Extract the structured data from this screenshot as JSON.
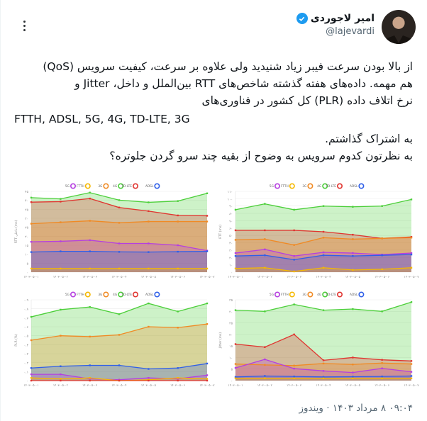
{
  "author": {
    "display_name": "امیر لاجوردی",
    "handle": "@lajevardi",
    "verified": true,
    "avatar_icon": "profile-photo"
  },
  "menu": {
    "icon": "more-vertical-icon"
  },
  "tweet": {
    "line1": "از بالا بودن سرعت فیبر زیاد شنیدید ولی علاوه بر سرعت، کیفیت سرویس (QoS)",
    "line2": "هم مهمه. داده‌های هفته گذشته شاخص‌های RTT بین‌الملل و داخل، Jitter و",
    "line3": "نرخ اتلاف داده (PLR) کل کشور در فناوری‌های",
    "line4": "FTTH, ADSL, 5G, 4G, TD-LTE, 3G",
    "line5": "به اشتراک گذاشتم.",
    "line6": "به نظرتون کدوم سرویس به وضوح از بقیه چند سرو گردن جلوتره؟"
  },
  "footer": {
    "time": "۰۹:۰۴",
    "date": "۸ مرداد ۱۴۰۳",
    "separator": "·",
    "source": "ویندوز",
    "full": "۰۹:۰۴ ۸ مرداد ۱۴۰۳ · ویندوز"
  },
  "colors": {
    "5G": "#b53fe0",
    "FTTH": "#f5b800",
    "3G": "#f08a24",
    "4G": "#4ccf3a",
    "TD-LTE": "#e0342f",
    "ADSL": "#2f5fe8"
  },
  "chart_data": [
    {
      "type": "area",
      "position": "top-left",
      "title": "",
      "ylabel": "RTT داخلی (ms)",
      "xlabel": "",
      "categories": [
        "۱۴۰۳-۰۵-۰۱",
        "۱۴۰۳-۰۵-۰۲",
        "۱۴۰۳-۰۵-۰۳",
        "۱۴۰۳-۰۵-۰۴",
        "۱۴۰۳-۰۵-۰۵",
        "۱۴۰۳-۰۵-۰۶",
        "۱۴۰۳-۰۵-۰۷"
      ],
      "yticks": [
        "۰",
        "۵",
        "۱۰",
        "۱۵",
        "۲۰",
        "۲۵",
        "۳۰",
        "۳۵",
        "۴۰",
        "۴۵"
      ],
      "ylim": [
        0,
        45
      ],
      "grid": true,
      "legend_position": "top",
      "legend": [
        "5G",
        "FTTH",
        "3G",
        "4G",
        "TD-LTE",
        "ADSL"
      ],
      "series": [
        {
          "name": "4G",
          "values": [
            41.5,
            40.8,
            44.3,
            40.1,
            38.9,
            39.6,
            43.9
          ]
        },
        {
          "name": "TD-LTE",
          "values": [
            39.0,
            39.3,
            41.0,
            36.0,
            34.0,
            31.6,
            31.4
          ]
        },
        {
          "name": "3G",
          "values": [
            27.0,
            27.8,
            28.6,
            27.5,
            28.2,
            28.2,
            28.2
          ]
        },
        {
          "name": "5G",
          "values": [
            16.9,
            17.2,
            17.8,
            16.0,
            16.0,
            15.0,
            12.0
          ]
        },
        {
          "name": "ADSL",
          "values": [
            11.2,
            11.6,
            11.6,
            11.3,
            11.2,
            11.4,
            11.6
          ]
        },
        {
          "name": "FTTH",
          "values": [
            2.0,
            2.0,
            2.0,
            2.0,
            2.0,
            2.0,
            2.0
          ]
        }
      ]
    },
    {
      "type": "area",
      "position": "top-right",
      "title": "",
      "ylabel": "RTT (ms)",
      "xlabel": "",
      "categories": [
        "۱۴۰۳-۰۵-۰۱",
        "۱۴۰۳-۰۵-۰۲",
        "۱۴۰۳-۰۵-۰۳",
        "۱۴۰۳-۰۵-۰۴",
        "۱۴۰۳-۰۵-۰۵",
        "۱۴۰۳-۰۵-۰۶",
        "۱۴۰۳-۰۵-۰۷"
      ],
      "yticks": [
        "۰",
        "۱۰",
        "۲۰",
        "۳۰",
        "۴۰",
        "۵۰",
        "۶۰",
        "۷۰",
        "۸۰",
        "۹۰",
        "۱۰۰",
        "۱۱۰"
      ],
      "ylim": [
        0,
        110
      ],
      "grid": true,
      "legend_position": "top",
      "legend": [
        "5G",
        "FTTH",
        "3G",
        "4G",
        "TD-LTE",
        "ADSL"
      ],
      "series": [
        {
          "name": "4G",
          "values": [
            85,
            93,
            85,
            90,
            89,
            90,
            99
          ]
        },
        {
          "name": "TD-LTE",
          "values": [
            57,
            57,
            57,
            55,
            51,
            46,
            48
          ]
        },
        {
          "name": "3G",
          "values": [
            44,
            45,
            37,
            47,
            45,
            46,
            47
          ]
        },
        {
          "name": "5G",
          "values": [
            26,
            31,
            22,
            27,
            26,
            24,
            26
          ]
        },
        {
          "name": "ADSL",
          "values": [
            22,
            23,
            17,
            23,
            22,
            23,
            24
          ]
        },
        {
          "name": "FTTH",
          "values": [
            5,
            6,
            1,
            6,
            3,
            4,
            6
          ]
        }
      ]
    },
    {
      "type": "area",
      "position": "bottom-left",
      "title": "",
      "ylabel": "PLR (%)",
      "xlabel": "",
      "categories": [
        "۱۴۰۳-۰۵-۰۱",
        "۱۴۰۳-۰۵-۰۲",
        "۱۴۰۳-۰۵-۰۳",
        "۱۴۰۳-۰۵-۰۴",
        "۱۴۰۳-۰۵-۰۵",
        "۱۴۰۳-۰۵-۰۶",
        "۱۴۰۳-۰۵-۰۷"
      ],
      "yticks": [
        "۰",
        "۰.۱",
        "۰.۲",
        "۰.۳",
        "۰.۴",
        "۰.۵",
        "۰.۶",
        "۰.۷",
        "۰.۸",
        "۰.۹"
      ],
      "ylim": [
        0,
        0.9
      ],
      "grid": true,
      "legend_position": "top",
      "legend": [
        "5G",
        "FTTH",
        "3G",
        "4G",
        "TD-LTE",
        "ADSL"
      ],
      "series": [
        {
          "name": "4G",
          "values": [
            0.71,
            0.79,
            0.82,
            0.74,
            0.86,
            0.77,
            0.86
          ]
        },
        {
          "name": "3G",
          "values": [
            0.45,
            0.5,
            0.49,
            0.51,
            0.6,
            0.59,
            0.63
          ]
        },
        {
          "name": "ADSL",
          "values": [
            0.14,
            0.16,
            0.17,
            0.17,
            0.13,
            0.14,
            0.19
          ]
        },
        {
          "name": "5G",
          "values": [
            0.07,
            0.07,
            0.02,
            0.01,
            0.03,
            0.02,
            0.06
          ]
        },
        {
          "name": "FTTH",
          "values": [
            0.03,
            0.02,
            0.03,
            0.0,
            0.01,
            0.03,
            0.02
          ]
        },
        {
          "name": "TD-LTE",
          "values": [
            0,
            0,
            0,
            0,
            0,
            0,
            0
          ]
        }
      ]
    },
    {
      "type": "area",
      "position": "bottom-right",
      "title": "",
      "ylabel": "Jitter (ms)",
      "xlabel": "",
      "categories": [
        "۱۴۰۳-۰۵-۰۱",
        "۱۴۰۳-۰۵-۰۲",
        "۱۴۰۳-۰۵-۰۳",
        "۱۴۰۳-۰۵-۰۴",
        "۱۴۰۳-۰۵-۰۵",
        "۱۴۰۳-۰۵-۰۶",
        "۱۴۰۳-۰۵-۰۷"
      ],
      "yticks": [
        "۰",
        "۵",
        "۱۰",
        "۱۵",
        "۲۰",
        "۲۵",
        "۳۰",
        "۳۵"
      ],
      "ylim": [
        0,
        35
      ],
      "grid": true,
      "legend_position": "top",
      "legend": [
        "5G",
        "FTTH",
        "3G",
        "4G",
        "TD-LTE",
        "ADSL"
      ],
      "series": [
        {
          "name": "4G",
          "values": [
            30.5,
            30.0,
            33.0,
            30.5,
            31.0,
            30.0,
            34.0
          ]
        },
        {
          "name": "TD-LTE",
          "values": [
            15.8,
            14.5,
            20.0,
            8.8,
            10.0,
            9.0,
            8.5
          ]
        },
        {
          "name": "3G",
          "values": [
            7.2,
            6.8,
            6.5,
            7.4,
            7.0,
            7.6,
            7.2
          ]
        },
        {
          "name": "5G",
          "values": [
            5.5,
            9.2,
            5.2,
            4.2,
            3.5,
            5.3,
            3.8
          ]
        },
        {
          "name": "ADSL",
          "values": [
            1.6,
            2.0,
            1.8,
            1.6,
            1.7,
            1.8,
            2.0
          ]
        },
        {
          "name": "FTTH",
          "values": [
            1.0,
            1.0,
            1.0,
            1.0,
            1.0,
            1.0,
            1.0
          ]
        }
      ]
    }
  ]
}
